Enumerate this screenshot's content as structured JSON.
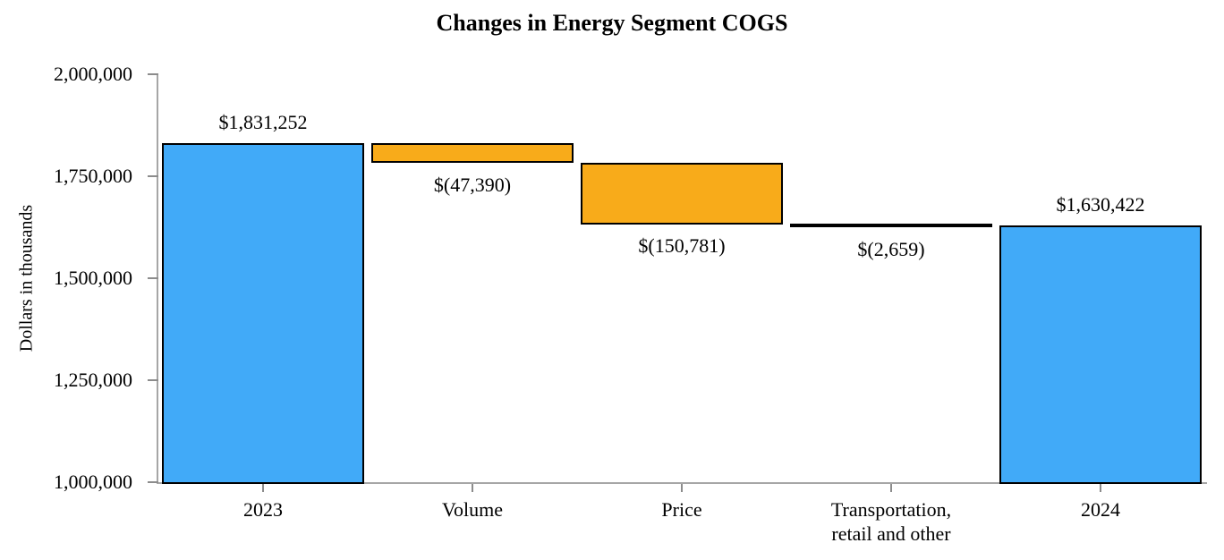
{
  "title": "Changes in Energy Segment COGS",
  "colors": {
    "total_bar": "#41AAF8",
    "decrease_bar": "#F8AB1A",
    "bar_border": "#000000",
    "axis_line": "#A6A6A6",
    "tick_mark": "#8C8C8C",
    "text": "#000000"
  },
  "y_axis": {
    "title": "Dollars in thousands",
    "ticks": [
      {
        "value": 2000000,
        "label": "2,000,000"
      },
      {
        "value": 1750000,
        "label": "1,750,000"
      },
      {
        "value": 1500000,
        "label": "1,500,000"
      },
      {
        "value": 1250000,
        "label": "1,250,000"
      },
      {
        "value": 1000000,
        "label": "1,000,000"
      }
    ]
  },
  "chart_data": {
    "type": "bar",
    "subtype": "waterfall",
    "title": "Changes in Energy Segment COGS",
    "xlabel": "",
    "ylabel": "Dollars in thousands",
    "ylim": [
      1000000,
      2000000
    ],
    "ytick_interval": 250000,
    "grid": false,
    "legend": false,
    "categories": [
      "2023",
      "Volume",
      "Price",
      "Transportation,\nretail and other",
      "2024"
    ],
    "bars": [
      {
        "category": "2023",
        "kind": "total",
        "value": 1831252,
        "from": 1000000,
        "to": 1831252,
        "data_label": "$1,831,252",
        "label_position": "above"
      },
      {
        "category": "Volume",
        "kind": "decrease",
        "value": -47390,
        "from": 1831252,
        "to": 1783862,
        "data_label": "$(47,390)",
        "label_position": "below"
      },
      {
        "category": "Price",
        "kind": "decrease",
        "value": -150781,
        "from": 1783862,
        "to": 1633081,
        "data_label": "$(150,781)",
        "label_position": "below"
      },
      {
        "category": "Transportation,\nretail and other",
        "kind": "decrease",
        "value": -2659,
        "from": 1633081,
        "to": 1630422,
        "data_label": "$(2,659)",
        "label_position": "below"
      },
      {
        "category": "2024",
        "kind": "total",
        "value": 1630422,
        "from": 1000000,
        "to": 1630422,
        "data_label": "$1,630,422",
        "label_position": "above"
      }
    ]
  }
}
